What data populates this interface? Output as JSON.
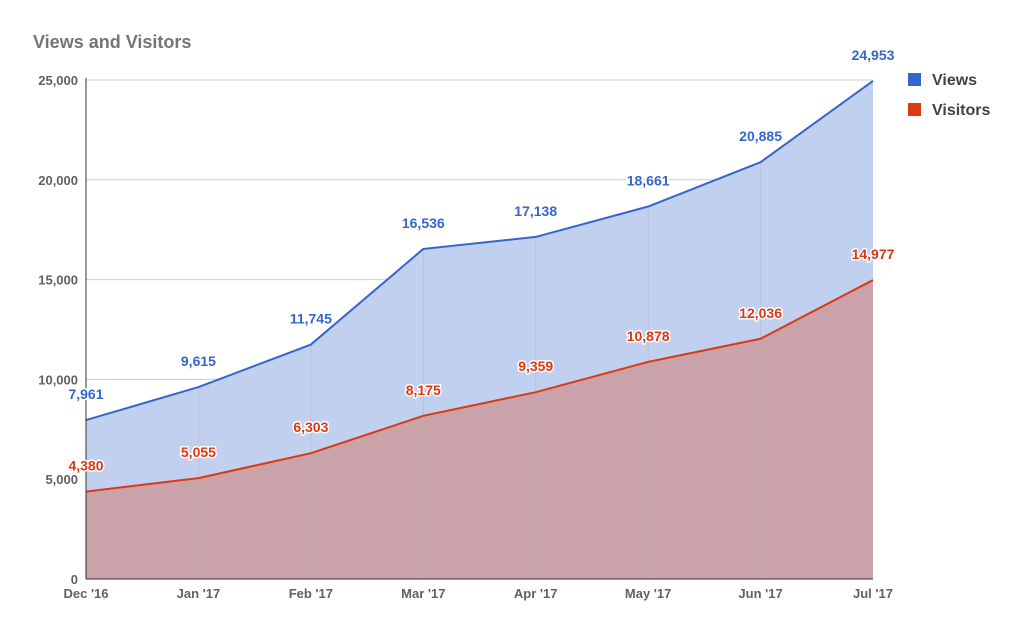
{
  "chart_data": {
    "type": "area",
    "title": "Views and Visitors",
    "categories": [
      "Dec '16",
      "Jan '17",
      "Feb '17",
      "Mar '17",
      "Apr '17",
      "May '17",
      "Jun '17",
      "Jul '17"
    ],
    "series": [
      {
        "name": "Views",
        "color": "#3366cc",
        "fill": "#c2d0f0",
        "values": [
          7961,
          9615,
          11745,
          16536,
          17138,
          18661,
          20885,
          24953
        ],
        "labels": [
          "7,961",
          "9,615",
          "11,745",
          "16,536",
          "17,138",
          "18,661",
          "20,885",
          "24,953"
        ]
      },
      {
        "name": "Visitors",
        "color": "#dc3912",
        "fill": "#c9a2aa",
        "values": [
          4380,
          5055,
          6303,
          8175,
          9359,
          10878,
          12036,
          14977
        ],
        "labels": [
          "4,380",
          "5,055",
          "6,303",
          "8,175",
          "9,359",
          "10,878",
          "12,036",
          "14,977"
        ]
      }
    ],
    "y_ticks": [
      0,
      5000,
      10000,
      15000,
      20000,
      25000
    ],
    "y_tick_labels": [
      "0",
      "5,000",
      "10,000",
      "15,000",
      "20,000",
      "25,000"
    ],
    "ylim": [
      0,
      25000
    ],
    "grid": true,
    "legend": "top-right"
  }
}
